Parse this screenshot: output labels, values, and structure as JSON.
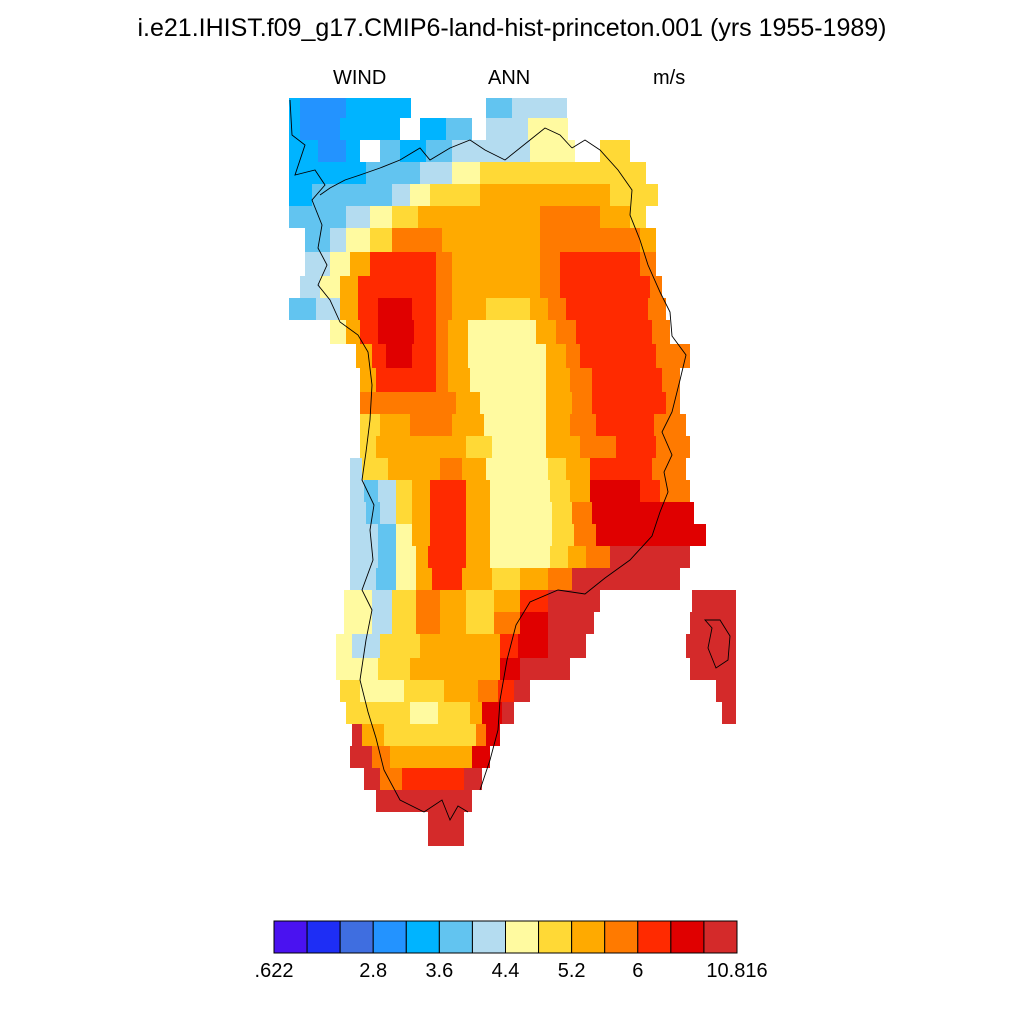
{
  "title": "i.e21.IHIST.f09_g17.CMIP6-land-hist-princeton.001 (yrs 1955-1989)",
  "subtitle": {
    "left": "WIND",
    "center": "ANN",
    "right": "m/s"
  },
  "map": {
    "region": "Greenland",
    "variable": "WIND",
    "season": "ANN",
    "units": "m/s"
  },
  "colorbar": {
    "colors": [
      "#4a12f0",
      "#1e2ef5",
      "#3f6ee0",
      "#2393ff",
      "#00b4ff",
      "#62c4f0",
      "#b4dcf0",
      "#fffaa0",
      "#ffd936",
      "#ffaa00",
      "#ff7a00",
      "#ff2a00",
      "#e00000",
      "#d42a2a"
    ],
    "labels": [
      {
        "text": ".622",
        "at_boundary": 0
      },
      {
        "text": "2.8",
        "at_boundary": 3
      },
      {
        "text": "3.6",
        "at_boundary": 5
      },
      {
        "text": "4.4",
        "at_boundary": 7
      },
      {
        "text": "5.2",
        "at_boundary": 9
      },
      {
        "text": "6",
        "at_boundary": 11
      },
      {
        "text": "10.816",
        "at_boundary": 14
      }
    ]
  }
}
